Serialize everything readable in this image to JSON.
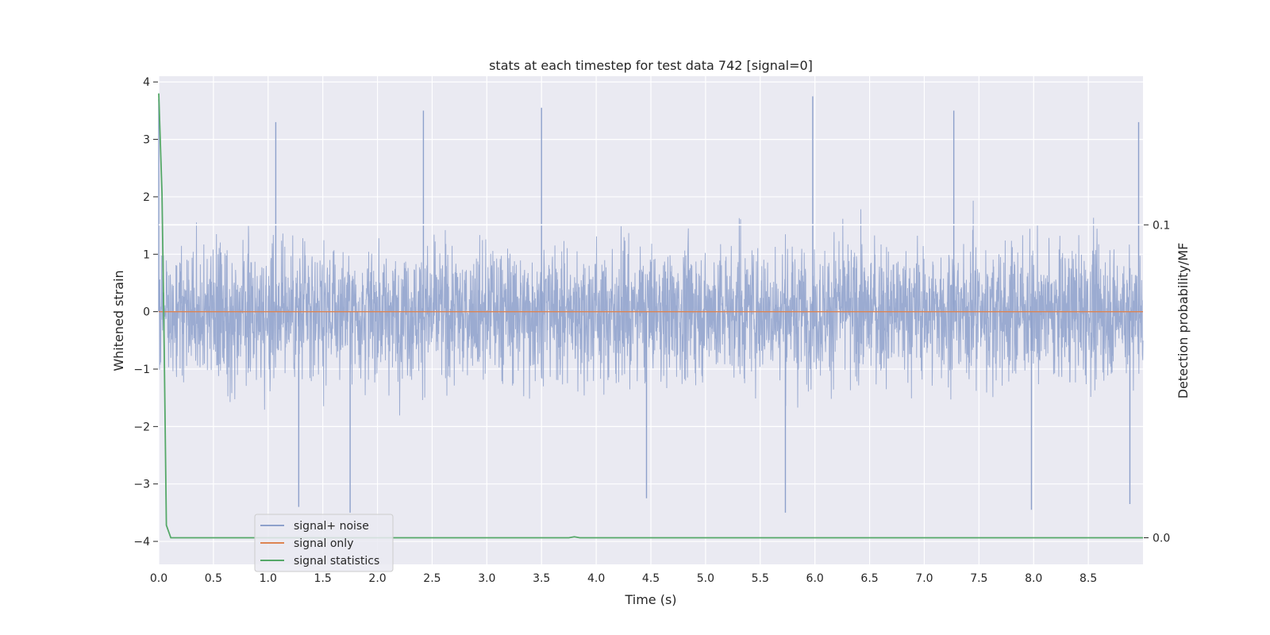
{
  "chart_data": {
    "type": "line",
    "title": "stats at each timestep for test data 742 [signal=0]",
    "xlabel": "Time (s)",
    "ylabel": "Whitened strain",
    "y2label": "Detection probability/MF",
    "xlim": [
      0.0,
      9.0
    ],
    "ylim": [
      -4.4,
      4.1
    ],
    "y2lim": [
      -0.0085,
      0.1475
    ],
    "xticks": [
      "0.0",
      "0.5",
      "1.0",
      "1.5",
      "2.0",
      "2.5",
      "3.0",
      "3.5",
      "4.0",
      "4.5",
      "5.0",
      "5.5",
      "6.0",
      "6.5",
      "7.0",
      "7.5",
      "8.0",
      "8.5"
    ],
    "yticks": [
      "4",
      "3",
      "2",
      "1",
      "0",
      "−1",
      "−2",
      "−3",
      "−4"
    ],
    "y2ticks": [
      "0.1",
      "0.0"
    ],
    "grid": true,
    "legend_position": "lower-left",
    "colors": {
      "noise": "#8da0cb",
      "signal": "#dd8452",
      "stats": "#55a868",
      "plot_bg": "#eaeaf2",
      "grid": "#ffffff"
    },
    "series": [
      {
        "name": "signal+ noise",
        "axis": "left",
        "note_kind": "noise",
        "amplitude_envelope": [
          -3.6,
          3.75
        ],
        "notable_peaks": [
          {
            "x": 0.0,
            "y": 3.7
          },
          {
            "x": 1.07,
            "y": 3.3
          },
          {
            "x": 2.42,
            "y": 3.5
          },
          {
            "x": 3.5,
            "y": 3.55
          },
          {
            "x": 5.98,
            "y": 3.75
          },
          {
            "x": 7.27,
            "y": 3.5
          },
          {
            "x": 8.96,
            "y": 3.3
          }
        ],
        "notable_troughs": [
          {
            "x": 1.28,
            "y": -3.4
          },
          {
            "x": 1.75,
            "y": -3.5
          },
          {
            "x": 4.46,
            "y": -3.25
          },
          {
            "x": 5.73,
            "y": -3.5
          },
          {
            "x": 7.98,
            "y": -3.45
          },
          {
            "x": 8.88,
            "y": -3.35
          }
        ]
      },
      {
        "name": "signal only",
        "axis": "left",
        "x": [
          0.0,
          9.0
        ],
        "y": [
          0.0,
          0.0
        ]
      },
      {
        "name": "signal statistics",
        "axis": "right",
        "x": [
          0.0,
          0.03,
          0.05,
          0.07,
          0.11,
          0.5,
          1.0,
          2.0,
          3.0,
          3.75,
          3.8,
          3.85,
          4.0,
          5.0,
          6.0,
          7.0,
          8.0,
          9.0
        ],
        "y": [
          0.142,
          0.11,
          0.06,
          0.004,
          0.0,
          0.0,
          0.0,
          0.0,
          0.0,
          0.0,
          0.0003,
          0.0,
          0.0,
          0.0,
          0.0,
          0.0,
          0.0,
          0.0
        ]
      },
      {
        "name": "",
        "axis": "right",
        "note_kind": "threshold",
        "x": [
          0.0,
          9.0
        ],
        "y": [
          0.1,
          0.1
        ]
      }
    ]
  }
}
